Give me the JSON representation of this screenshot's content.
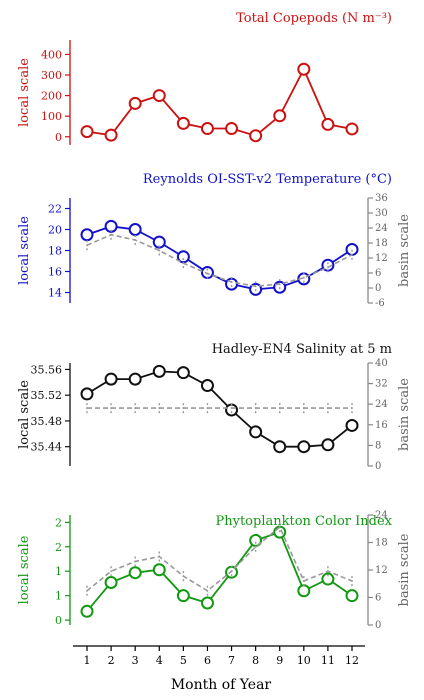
{
  "xaxis": {
    "label": "Month of Year",
    "ticks": [
      "1",
      "2",
      "3",
      "4",
      "5",
      "6",
      "7",
      "8",
      "9",
      "10",
      "11",
      "12"
    ]
  },
  "chart_data": [
    {
      "type": "line",
      "title": "Total Copepods (N m⁻³)",
      "color": "#cc1111",
      "ylabel": "local scale",
      "ylim": [
        -40,
        470
      ],
      "yticks": [
        0,
        100,
        200,
        300,
        400
      ],
      "x": [
        1,
        2,
        3,
        4,
        5,
        6,
        7,
        8,
        9,
        10,
        11,
        12
      ],
      "series": [
        {
          "values": [
            25,
            8,
            162,
            200,
            65,
            40,
            40,
            5,
            102,
            328,
            60,
            38
          ]
        }
      ]
    },
    {
      "type": "line",
      "title": "Reynolds OI-SST-v2 Temperature (°C)",
      "color": "#1111cc",
      "ylabel": "local scale",
      "ylim": [
        13,
        23
      ],
      "yticks": [
        14,
        16,
        18,
        20,
        22
      ],
      "ylabel_right": "basin scale",
      "ylim_right": [
        -6,
        36
      ],
      "yticks_right": [
        -6,
        0,
        6,
        12,
        18,
        24,
        30,
        36
      ],
      "x": [
        1,
        2,
        3,
        4,
        5,
        6,
        7,
        8,
        9,
        10,
        11,
        12
      ],
      "series": [
        {
          "values": [
            19.5,
            20.3,
            20.0,
            18.8,
            17.4,
            15.9,
            14.8,
            14.3,
            14.5,
            15.3,
            16.6,
            18.1
          ]
        },
        {
          "axis": "right",
          "style": "dashed",
          "color": "#999999",
          "values": [
            18.5,
            19.5,
            19.0,
            18.0,
            16.8,
            15.8,
            15.0,
            14.6,
            14.8,
            15.4,
            16.4,
            17.6
          ]
        }
      ]
    },
    {
      "type": "line",
      "title": "Hadley-EN4 Salinity at 5 m",
      "color": "#111111",
      "ylabel": "local scale",
      "ylim": [
        35.41,
        35.57
      ],
      "yticks": [
        35.44,
        35.48,
        35.52,
        35.56
      ],
      "ylabel_right": "basin scale",
      "ylim_right": [
        0,
        40
      ],
      "yticks_right": [
        0,
        8,
        16,
        24,
        32,
        40
      ],
      "x": [
        1,
        2,
        3,
        4,
        5,
        6,
        7,
        8,
        9,
        10,
        11,
        12
      ],
      "series": [
        {
          "values": [
            35.522,
            35.545,
            35.545,
            35.557,
            35.555,
            35.535,
            35.497,
            35.463,
            35.44,
            35.44,
            35.443,
            35.473
          ]
        },
        {
          "axis": "right",
          "style": "dashed",
          "color": "#999999",
          "values": [
            35.5,
            35.5,
            35.5,
            35.5,
            35.5,
            35.5,
            35.5,
            35.5,
            35.5,
            35.5,
            35.5,
            35.5
          ]
        }
      ]
    },
    {
      "type": "line",
      "title": "Phytoplankton Color Index",
      "color": "#119911",
      "ylabel": "local scale",
      "ylim": [
        -0.1,
        2.15
      ],
      "yticks": [
        0.0,
        0.5,
        1.0,
        1.5,
        2.0
      ],
      "ylabel_right": "basin scale",
      "ylim_right": [
        0,
        24
      ],
      "yticks_right": [
        0,
        6,
        12,
        18,
        24
      ],
      "x": [
        1,
        2,
        3,
        4,
        5,
        6,
        7,
        8,
        9,
        10,
        11,
        12
      ],
      "series": [
        {
          "values": [
            0.18,
            0.77,
            0.97,
            1.03,
            0.5,
            0.35,
            0.98,
            1.63,
            1.8,
            0.6,
            0.84,
            0.5
          ]
        },
        {
          "axis": "right",
          "style": "dashed",
          "color": "#999999",
          "values": [
            0.6,
            1.0,
            1.2,
            1.3,
            0.9,
            0.6,
            1.0,
            1.5,
            1.9,
            0.8,
            1.0,
            0.8
          ]
        }
      ]
    }
  ]
}
